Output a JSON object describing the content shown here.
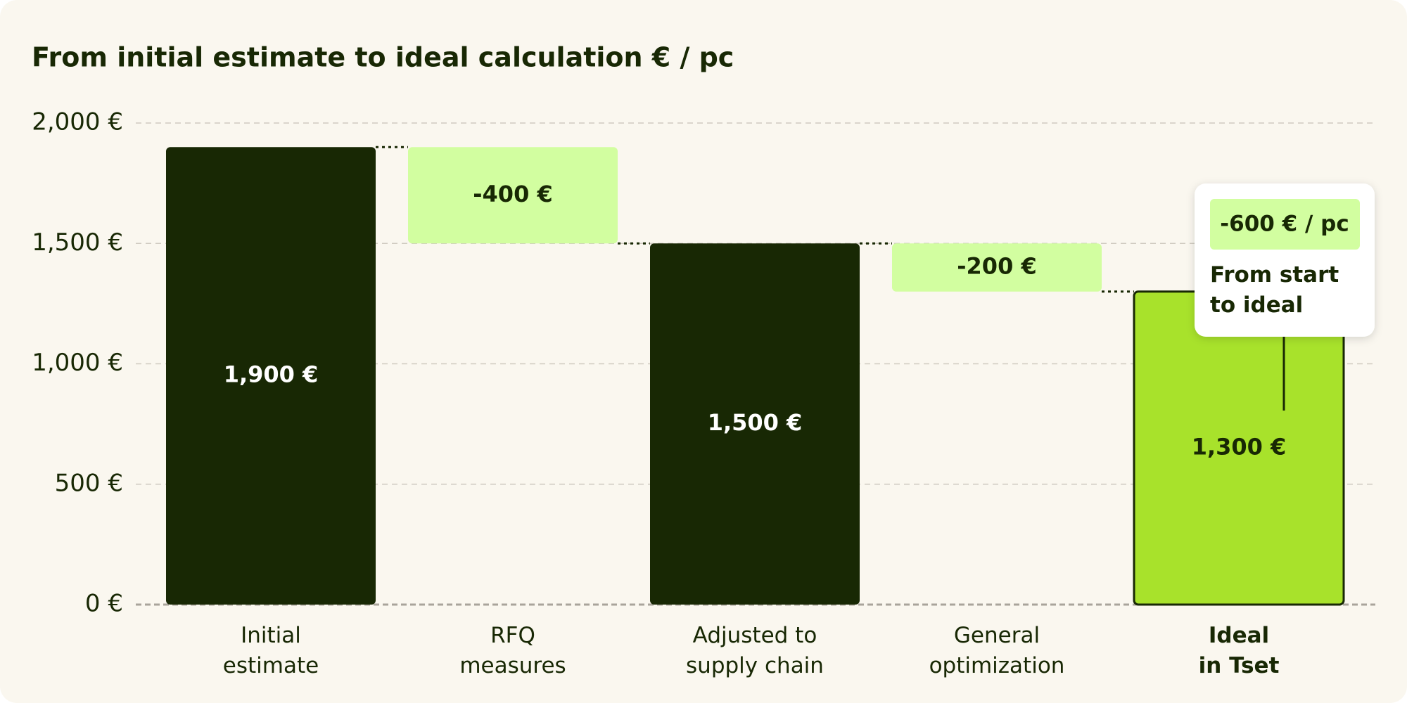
{
  "chart_data": {
    "type": "waterfall",
    "title": "From initial estimate to ideal calculation € / pc",
    "categories": [
      "Initial\nestimate",
      "RFQ\nmeasures",
      "Adjusted to\nsupply chain",
      "General\noptimization",
      "Ideal\nin Tset"
    ],
    "values": [
      1900,
      -400,
      1500,
      -200,
      1300
    ],
    "value_labels": [
      "1,900 €",
      "-400 €",
      "1,500 €",
      "-200 €",
      "1,300 €"
    ],
    "colors": [
      "#182804",
      "#d2fea0",
      "#182804",
      "#d2fea0",
      "#a8e22b"
    ],
    "ylim": [
      0,
      2000
    ],
    "yticks": [
      {
        "value": 0,
        "label": "0 €"
      },
      {
        "value": 500,
        "label": "500 €"
      },
      {
        "value": 1000,
        "label": "1,000 €"
      },
      {
        "value": 1500,
        "label": "1,500 €"
      },
      {
        "value": 2000,
        "label": "2,000 €"
      }
    ],
    "grid": true,
    "annotation": {
      "label": "-600 € / pc",
      "text": "From start\nto ideal"
    }
  }
}
